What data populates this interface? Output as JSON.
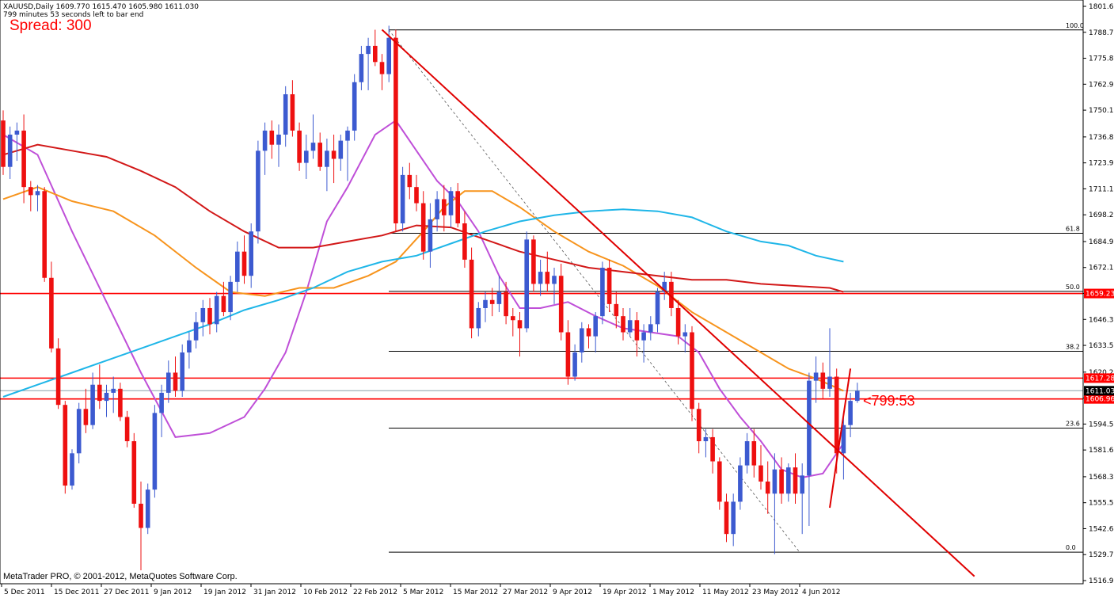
{
  "header": {
    "symbol_line": "XAUUSD,Daily  1609.770 1615.470 1605.980 1611.030",
    "timer_line": "799 minutes 53 seconds left to bar end",
    "spread_text": "Spread: 300"
  },
  "footer": {
    "copyright": "MetaTrader PRO, © 2001-2012, MetaQuotes Software Corp."
  },
  "annotation": "<799:53",
  "colors": {
    "bull": "#3c5ad0",
    "bear": "#ee1010",
    "ma_purple": "#bf4fd8",
    "ma_orange": "#f7941d",
    "ma_red": "#d21818",
    "ma_cyan": "#1fb6e8",
    "trend": "#e00000",
    "hline": "#ff0000"
  },
  "chart_data": {
    "type": "candlestick",
    "symbol": "XAUUSD",
    "timeframe": "Daily",
    "ylim": [
      1516.9,
      1801.6
    ],
    "price_ticks": [
      "1801.60",
      "1788.73",
      "1775.86",
      "1762.99",
      "1750.12",
      "1736.86",
      "1723.99",
      "1711.12",
      "1698.25",
      "1684.99",
      "1672.12",
      "1659.25",
      "1646.38",
      "1633.51",
      "1620.25",
      "1607.38",
      "1594.51",
      "1581.64",
      "1568.38",
      "1555.51",
      "1542.64",
      "1529.77",
      "1516.90"
    ],
    "date_labels": [
      "5 Dec 2011",
      "15 Dec 2011",
      "27 Dec 2011",
      "9 Jan 2012",
      "19 Jan 2012",
      "31 Jan 2012",
      "10 Feb 2012",
      "22 Feb 2012",
      "5 Mar 2012",
      "15 Mar 2012",
      "27 Mar 2012",
      "9 Apr 2012",
      "19 Apr 2012",
      "1 May 2012",
      "11 May 2012",
      "23 May 2012",
      "4 Jun 2012"
    ],
    "candles": [
      [
        1745,
        1750,
        1718,
        1722
      ],
      [
        1722,
        1742,
        1716,
        1738
      ],
      [
        1738,
        1744,
        1725,
        1740
      ],
      [
        1740,
        1748,
        1704,
        1712
      ],
      [
        1712,
        1715,
        1700,
        1708
      ],
      [
        1708,
        1713,
        1700,
        1710
      ],
      [
        1710,
        1712,
        1665,
        1667
      ],
      [
        1667,
        1675,
        1630,
        1632
      ],
      [
        1632,
        1637,
        1602,
        1604
      ],
      [
        1604,
        1606,
        1560,
        1564
      ],
      [
        1564,
        1582,
        1562,
        1580
      ],
      [
        1580,
        1605,
        1575,
        1602
      ],
      [
        1602,
        1612,
        1590,
        1594
      ],
      [
        1594,
        1620,
        1592,
        1614
      ],
      [
        1614,
        1624,
        1602,
        1606
      ],
      [
        1606,
        1614,
        1598,
        1610
      ],
      [
        1610,
        1618,
        1600,
        1612
      ],
      [
        1612,
        1615,
        1596,
        1598
      ],
      [
        1598,
        1601,
        1583,
        1586
      ],
      [
        1586,
        1590,
        1553,
        1555
      ],
      [
        1555,
        1566,
        1522,
        1543
      ],
      [
        1543,
        1565,
        1540,
        1562
      ],
      [
        1562,
        1604,
        1558,
        1600
      ],
      [
        1600,
        1614,
        1588,
        1610
      ],
      [
        1610,
        1626,
        1605,
        1620
      ],
      [
        1620,
        1628,
        1608,
        1611
      ],
      [
        1611,
        1634,
        1608,
        1630
      ],
      [
        1630,
        1640,
        1622,
        1636
      ],
      [
        1636,
        1650,
        1632,
        1645
      ],
      [
        1645,
        1656,
        1638,
        1652
      ],
      [
        1652,
        1657,
        1639,
        1644
      ],
      [
        1644,
        1660,
        1640,
        1658
      ],
      [
        1658,
        1665,
        1648,
        1650
      ],
      [
        1650,
        1668,
        1646,
        1665
      ],
      [
        1665,
        1685,
        1660,
        1680
      ],
      [
        1680,
        1688,
        1664,
        1668
      ],
      [
        1668,
        1694,
        1662,
        1690
      ],
      [
        1690,
        1735,
        1684,
        1730
      ],
      [
        1730,
        1744,
        1718,
        1740
      ],
      [
        1740,
        1745,
        1726,
        1733
      ],
      [
        1733,
        1743,
        1722,
        1738
      ],
      [
        1738,
        1762,
        1732,
        1758
      ],
      [
        1758,
        1765,
        1737,
        1740
      ],
      [
        1740,
        1744,
        1720,
        1724
      ],
      [
        1724,
        1738,
        1716,
        1730
      ],
      [
        1730,
        1748,
        1726,
        1734
      ],
      [
        1734,
        1739,
        1720,
        1722
      ],
      [
        1722,
        1736,
        1710,
        1730
      ],
      [
        1730,
        1738,
        1714,
        1726
      ],
      [
        1726,
        1738,
        1720,
        1735
      ],
      [
        1735,
        1742,
        1715,
        1740
      ],
      [
        1740,
        1768,
        1735,
        1764
      ],
      [
        1764,
        1782,
        1760,
        1778
      ],
      [
        1778,
        1786,
        1760,
        1782
      ],
      [
        1782,
        1790,
        1772,
        1774
      ],
      [
        1774,
        1778,
        1760,
        1768
      ],
      [
        1768,
        1792,
        1764,
        1786
      ],
      [
        1786,
        1790,
        1690,
        1694
      ],
      [
        1694,
        1722,
        1690,
        1718
      ],
      [
        1718,
        1724,
        1706,
        1712
      ],
      [
        1712,
        1718,
        1700,
        1704
      ],
      [
        1704,
        1710,
        1676,
        1680
      ],
      [
        1680,
        1704,
        1672,
        1696
      ],
      [
        1696,
        1710,
        1690,
        1706
      ],
      [
        1706,
        1713,
        1690,
        1698
      ],
      [
        1698,
        1712,
        1692,
        1710
      ],
      [
        1710,
        1714,
        1692,
        1694
      ],
      [
        1694,
        1700,
        1672,
        1676
      ],
      [
        1676,
        1682,
        1637,
        1642
      ],
      [
        1642,
        1655,
        1638,
        1652
      ],
      [
        1652,
        1660,
        1645,
        1656
      ],
      [
        1656,
        1662,
        1648,
        1654
      ],
      [
        1654,
        1668,
        1650,
        1660
      ],
      [
        1660,
        1665,
        1644,
        1648
      ],
      [
        1648,
        1652,
        1638,
        1646
      ],
      [
        1646,
        1650,
        1628,
        1642
      ],
      [
        1642,
        1690,
        1640,
        1686
      ],
      [
        1686,
        1688,
        1660,
        1664
      ],
      [
        1664,
        1676,
        1658,
        1670
      ],
      [
        1670,
        1680,
        1660,
        1664
      ],
      [
        1664,
        1672,
        1654,
        1668
      ],
      [
        1668,
        1674,
        1636,
        1640
      ],
      [
        1640,
        1646,
        1614,
        1618
      ],
      [
        1618,
        1634,
        1616,
        1630
      ],
      [
        1630,
        1645,
        1625,
        1642
      ],
      [
        1642,
        1644,
        1632,
        1638
      ],
      [
        1638,
        1650,
        1630,
        1648
      ],
      [
        1648,
        1675,
        1644,
        1672
      ],
      [
        1672,
        1676,
        1650,
        1654
      ],
      [
        1654,
        1660,
        1642,
        1648
      ],
      [
        1648,
        1652,
        1636,
        1640
      ],
      [
        1640,
        1652,
        1638,
        1646
      ],
      [
        1646,
        1650,
        1628,
        1636
      ],
      [
        1636,
        1644,
        1625,
        1640
      ],
      [
        1640,
        1648,
        1636,
        1644
      ],
      [
        1644,
        1662,
        1640,
        1660
      ],
      [
        1660,
        1670,
        1656,
        1665
      ],
      [
        1665,
        1670,
        1648,
        1652
      ],
      [
        1652,
        1656,
        1634,
        1638
      ],
      [
        1638,
        1644,
        1630,
        1640
      ],
      [
        1640,
        1643,
        1596,
        1602
      ],
      [
        1602,
        1605,
        1580,
        1586
      ],
      [
        1586,
        1592,
        1578,
        1588
      ],
      [
        1588,
        1592,
        1570,
        1576
      ],
      [
        1576,
        1578,
        1552,
        1556
      ],
      [
        1556,
        1560,
        1536,
        1540
      ],
      [
        1540,
        1560,
        1534,
        1556
      ],
      [
        1556,
        1578,
        1552,
        1574
      ],
      [
        1574,
        1590,
        1570,
        1586
      ],
      [
        1586,
        1592,
        1568,
        1574
      ],
      [
        1574,
        1584,
        1562,
        1566
      ],
      [
        1566,
        1576,
        1550,
        1560
      ],
      [
        1560,
        1580,
        1530,
        1572
      ],
      [
        1572,
        1578,
        1555,
        1560
      ],
      [
        1560,
        1575,
        1556,
        1573
      ],
      [
        1573,
        1580,
        1555,
        1560
      ],
      [
        1560,
        1575,
        1540,
        1569
      ],
      [
        1569,
        1620,
        1544,
        1616
      ],
      [
        1616,
        1628,
        1605,
        1620
      ],
      [
        1620,
        1625,
        1607,
        1612
      ],
      [
        1612,
        1642,
        1608,
        1618
      ],
      [
        1618,
        1622,
        1570,
        1580
      ],
      [
        1580,
        1600,
        1567,
        1594
      ],
      [
        1594,
        1610,
        1588,
        1606
      ],
      [
        1606,
        1615,
        1605,
        1611
      ]
    ],
    "horizontal_levels": [
      {
        "label": "1659.23",
        "value": 1659.23,
        "color": "#ff0000"
      },
      {
        "label": "1617.28",
        "value": 1617.28,
        "color": "#ff0000"
      },
      {
        "label": "1606.96",
        "value": 1606.96,
        "color": "#ff0000"
      },
      {
        "label": "1611.03",
        "value": 1611.03,
        "color": "#000000"
      }
    ],
    "fibonacci": {
      "high": 1789.9,
      "low": 1531.0,
      "levels": [
        {
          "label": "100.0",
          "value": 1789.9
        },
        {
          "label": "61.8",
          "value": 1689.1
        },
        {
          "label": "50.0",
          "value": 1660.3
        },
        {
          "label": "38.2",
          "value": 1630.6
        },
        {
          "label": "23.6",
          "value": 1592.5
        },
        {
          "label": "0.0",
          "value": 1531.0
        }
      ]
    },
    "moving_averages": [
      {
        "color": "#bf4fd8",
        "points": [
          [
            0,
            1738
          ],
          [
            5,
            1728
          ],
          [
            10,
            1690
          ],
          [
            15,
            1655
          ],
          [
            20,
            1620
          ],
          [
            25,
            1588
          ],
          [
            30,
            1590
          ],
          [
            35,
            1598
          ],
          [
            38,
            1612
          ],
          [
            41,
            1630
          ],
          [
            44,
            1660
          ],
          [
            47,
            1695
          ],
          [
            50,
            1712
          ],
          [
            54,
            1738
          ],
          [
            57,
            1745
          ],
          [
            60,
            1730
          ],
          [
            63,
            1715
          ],
          [
            66,
            1705
          ],
          [
            69,
            1690
          ],
          [
            72,
            1668
          ],
          [
            75,
            1652
          ],
          [
            78,
            1652
          ],
          [
            82,
            1655
          ],
          [
            86,
            1648
          ],
          [
            90,
            1642
          ],
          [
            94,
            1640
          ],
          [
            98,
            1638
          ],
          [
            101,
            1630
          ],
          [
            104,
            1612
          ],
          [
            107,
            1598
          ],
          [
            110,
            1586
          ],
          [
            113,
            1572
          ],
          [
            116,
            1568
          ],
          [
            119,
            1570
          ],
          [
            122,
            1585
          ]
        ]
      },
      {
        "color": "#f7941d",
        "points": [
          [
            0,
            1706
          ],
          [
            5,
            1712
          ],
          [
            10,
            1705
          ],
          [
            16,
            1700
          ],
          [
            22,
            1688
          ],
          [
            28,
            1672
          ],
          [
            33,
            1660
          ],
          [
            38,
            1658
          ],
          [
            43,
            1662
          ],
          [
            48,
            1662
          ],
          [
            53,
            1668
          ],
          [
            57,
            1675
          ],
          [
            61,
            1690
          ],
          [
            64,
            1702
          ],
          [
            67,
            1710
          ],
          [
            71,
            1710
          ],
          [
            75,
            1702
          ],
          [
            80,
            1690
          ],
          [
            85,
            1680
          ],
          [
            90,
            1673
          ],
          [
            95,
            1663
          ],
          [
            100,
            1650
          ],
          [
            105,
            1640
          ],
          [
            110,
            1630
          ],
          [
            114,
            1622
          ],
          [
            118,
            1617
          ],
          [
            122,
            1611
          ]
        ]
      },
      {
        "color": "#d21818",
        "points": [
          [
            0,
            1728
          ],
          [
            5,
            1733
          ],
          [
            10,
            1730
          ],
          [
            15,
            1727
          ],
          [
            20,
            1720
          ],
          [
            25,
            1712
          ],
          [
            30,
            1700
          ],
          [
            35,
            1690
          ],
          [
            40,
            1682
          ],
          [
            45,
            1682
          ],
          [
            50,
            1685
          ],
          [
            55,
            1688
          ],
          [
            60,
            1693
          ],
          [
            65,
            1692
          ],
          [
            70,
            1686
          ],
          [
            75,
            1680
          ],
          [
            80,
            1676
          ],
          [
            85,
            1672
          ],
          [
            90,
            1670
          ],
          [
            95,
            1668
          ],
          [
            100,
            1666
          ],
          [
            105,
            1666
          ],
          [
            110,
            1664
          ],
          [
            115,
            1663
          ],
          [
            120,
            1662
          ],
          [
            122,
            1660
          ]
        ]
      },
      {
        "color": "#1fb6e8",
        "points": [
          [
            0,
            1608
          ],
          [
            5,
            1614
          ],
          [
            10,
            1620
          ],
          [
            15,
            1626
          ],
          [
            20,
            1632
          ],
          [
            25,
            1638
          ],
          [
            30,
            1644
          ],
          [
            35,
            1651
          ],
          [
            40,
            1656
          ],
          [
            45,
            1662
          ],
          [
            50,
            1670
          ],
          [
            55,
            1675
          ],
          [
            60,
            1678
          ],
          [
            65,
            1684
          ],
          [
            70,
            1690
          ],
          [
            75,
            1695
          ],
          [
            80,
            1698
          ],
          [
            85,
            1700
          ],
          [
            90,
            1701
          ],
          [
            95,
            1700
          ],
          [
            100,
            1697
          ],
          [
            105,
            1690
          ],
          [
            110,
            1685
          ],
          [
            114,
            1683
          ],
          [
            118,
            1678
          ],
          [
            122,
            1675
          ]
        ]
      }
    ],
    "trendlines": [
      {
        "from": [
          55,
          1790
        ],
        "to": [
          141,
          1519
        ],
        "color": "#e00000"
      },
      {
        "from": [
          120,
          1553
        ],
        "to": [
          123,
          1622
        ],
        "color": "#e00000"
      }
    ]
  }
}
